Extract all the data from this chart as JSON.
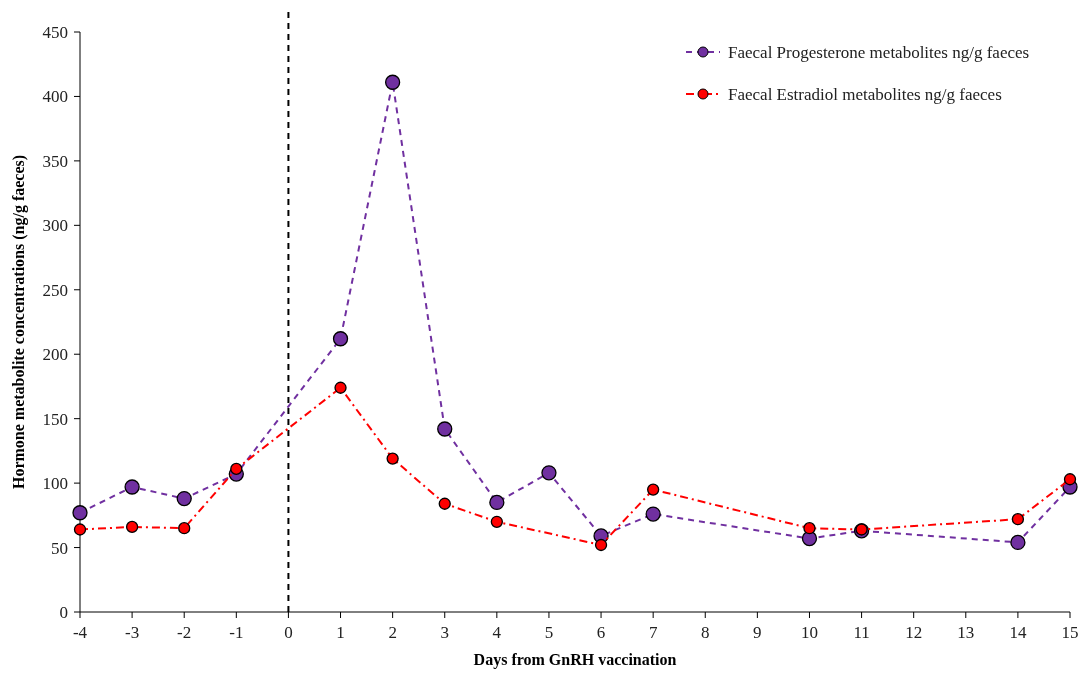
{
  "chart_data": {
    "type": "line",
    "xlabel": "Days from GnRH vaccination",
    "ylabel": "Hormone metabolite concentrations (ng/g faeces)",
    "xlim": [
      -4,
      15
    ],
    "xticks": [
      -4,
      -3,
      -2,
      -1,
      0,
      1,
      2,
      3,
      4,
      5,
      6,
      7,
      8,
      9,
      10,
      11,
      12,
      13,
      14,
      15
    ],
    "ylim": [
      0,
      450
    ],
    "yticks": [
      0,
      50,
      100,
      150,
      200,
      250,
      300,
      350,
      400,
      450
    ],
    "grid": false,
    "legend": "top right",
    "marker": "circle",
    "ref_lines": [
      {
        "axis": "x",
        "value": 0,
        "color": "#000000",
        "line_style": "dashed"
      }
    ],
    "series": [
      {
        "name": "Faecal Progesterone metabolites ng/g faeces",
        "color": "#7030a0",
        "line_style": "dashed",
        "x": [
          -4,
          -3,
          -2,
          -1,
          1,
          2,
          3,
          4,
          5,
          6,
          7,
          10,
          11,
          14,
          15
        ],
        "values": [
          77,
          97,
          88,
          107,
          212,
          411,
          142,
          85,
          108,
          59,
          76,
          57,
          63,
          54,
          97
        ]
      },
      {
        "name": "Faecal Estradiol metabolites ng/g faeces",
        "color": "#ff0000",
        "line_style": "dashdot",
        "x": [
          -4,
          -3,
          -2,
          -1,
          1,
          2,
          3,
          4,
          6,
          7,
          10,
          11,
          14,
          15
        ],
        "values": [
          64,
          66,
          65,
          111,
          174,
          119,
          84,
          70,
          52,
          95,
          65,
          64,
          72,
          103
        ]
      }
    ]
  }
}
